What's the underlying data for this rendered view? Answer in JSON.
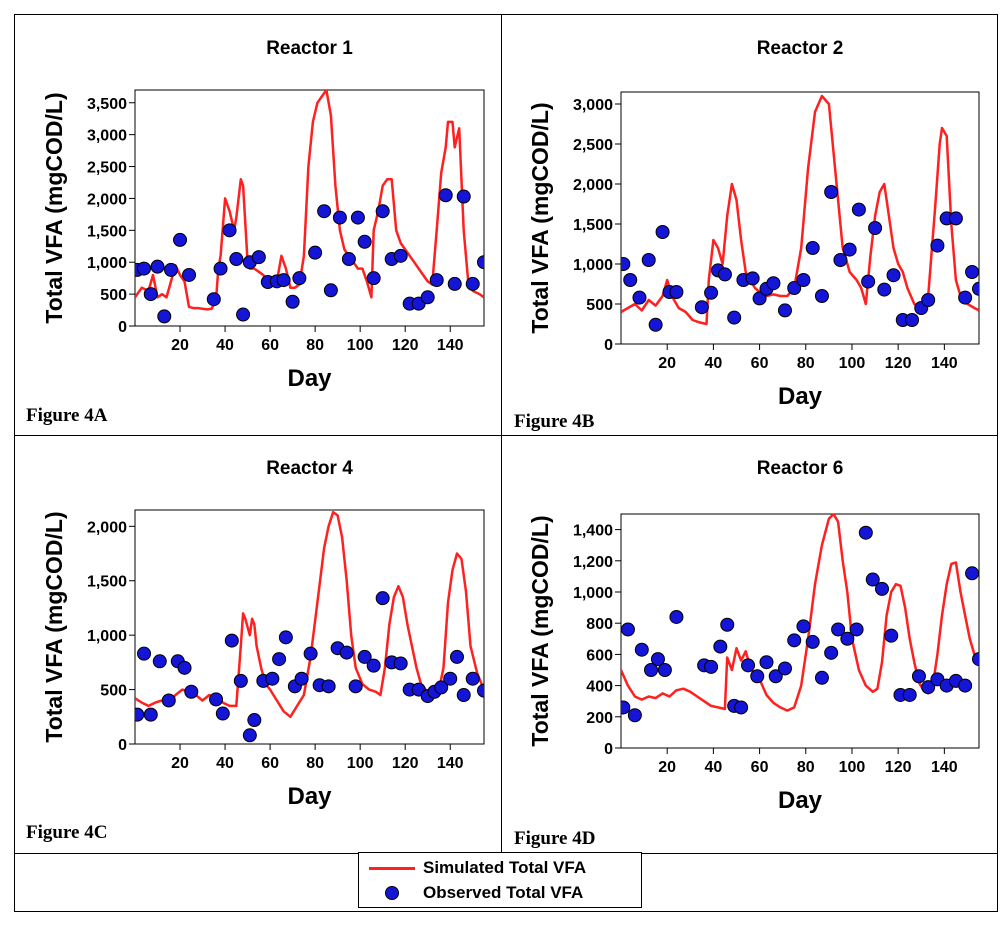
{
  "colors": {
    "simulated": "#ff2020",
    "observed": "#1515d8",
    "marker_edge": "#000000"
  },
  "legend": {
    "simulated_label": "Simulated Total VFA",
    "observed_label": "Observed Total VFA"
  },
  "chart_data": [
    {
      "type": "line+scatter",
      "figure_label": "Figure 4A",
      "title": "Reactor 1",
      "xlabel": "Day",
      "ylabel": "Total VFA (mgCOD/L)",
      "xlim": [
        0,
        155
      ],
      "ylim": [
        0,
        3700
      ],
      "xticks": [
        20,
        40,
        60,
        80,
        100,
        120,
        140
      ],
      "yticks": [
        0,
        500,
        1000,
        1500,
        2000,
        2500,
        3000,
        3500
      ],
      "ytick_labels": [
        "0",
        "500",
        "1,000",
        "1,500",
        "2,000",
        "2,500",
        "3,000",
        "3,500"
      ],
      "series": [
        {
          "name": "Simulated Total VFA",
          "kind": "line",
          "x": [
            0,
            3,
            6,
            8,
            10,
            12,
            14,
            16,
            18,
            20,
            22,
            24,
            26,
            28,
            30,
            32,
            34,
            36,
            37,
            38,
            40,
            42,
            44,
            45,
            47,
            48,
            50,
            51,
            53,
            55,
            57,
            59,
            61,
            63,
            65,
            67,
            69,
            71,
            73,
            75,
            77,
            79,
            81,
            83,
            85,
            87,
            89,
            91,
            93,
            95,
            97,
            99,
            101,
            103,
            105,
            106,
            108,
            110,
            112,
            114,
            116,
            118,
            120,
            122,
            124,
            126,
            128,
            130,
            132,
            134,
            136,
            138,
            139,
            141,
            142,
            144,
            146,
            148,
            150,
            153,
            155
          ],
          "y": [
            450,
            600,
            550,
            800,
            450,
            500,
            450,
            700,
            950,
            800,
            700,
            300,
            280,
            280,
            270,
            260,
            270,
            420,
            900,
            1100,
            2000,
            1800,
            1500,
            1700,
            2300,
            2200,
            1000,
            900,
            900,
            850,
            800,
            700,
            650,
            700,
            1100,
            900,
            600,
            600,
            650,
            1100,
            2500,
            3200,
            3500,
            3600,
            3700,
            3300,
            2200,
            1500,
            1200,
            1100,
            1000,
            900,
            900,
            700,
            450,
            1500,
            1800,
            2200,
            2300,
            2300,
            1500,
            1300,
            1200,
            1100,
            1000,
            900,
            800,
            700,
            650,
            1500,
            2400,
            2800,
            3200,
            3200,
            2800,
            3100,
            1500,
            700,
            550,
            500,
            450
          ]
        },
        {
          "name": "Observed Total VFA",
          "kind": "scatter",
          "x": [
            1,
            4,
            7,
            10,
            13,
            16,
            20,
            24,
            35,
            38,
            42,
            45,
            48,
            51,
            55,
            59,
            63,
            66,
            70,
            73,
            80,
            84,
            87,
            91,
            95,
            99,
            102,
            106,
            110,
            114,
            118,
            122,
            126,
            130,
            134,
            138,
            142,
            146,
            150,
            155
          ],
          "y": [
            880,
            900,
            500,
            930,
            150,
            880,
            1350,
            800,
            420,
            900,
            1500,
            1050,
            180,
            1000,
            1080,
            690,
            700,
            720,
            380,
            750,
            1150,
            1800,
            560,
            1700,
            1050,
            1700,
            1320,
            750,
            1800,
            1050,
            1100,
            350,
            350,
            450,
            720,
            2050,
            660,
            2030,
            660,
            1000
          ]
        }
      ]
    },
    {
      "type": "line+scatter",
      "figure_label": "Figure 4B",
      "title": "Reactor 2",
      "xlabel": "Day",
      "ylabel": "Total VFA (mgCOD/L)",
      "xlim": [
        0,
        155
      ],
      "ylim": [
        0,
        3150
      ],
      "xticks": [
        20,
        40,
        60,
        80,
        100,
        120,
        140
      ],
      "yticks": [
        0,
        500,
        1000,
        1500,
        2000,
        2500,
        3000
      ],
      "ytick_labels": [
        "0",
        "500",
        "1,000",
        "1,500",
        "2,000",
        "2,500",
        "3,000"
      ],
      "series": [
        {
          "name": "Simulated Total VFA",
          "kind": "line",
          "x": [
            0,
            3,
            6,
            9,
            12,
            15,
            18,
            20,
            22,
            25,
            28,
            31,
            34,
            37,
            38,
            40,
            42,
            44,
            46,
            48,
            50,
            52,
            54,
            56,
            58,
            60,
            63,
            66,
            69,
            72,
            75,
            78,
            81,
            84,
            87,
            90,
            93,
            96,
            99,
            102,
            104,
            106,
            108,
            110,
            112,
            114,
            116,
            118,
            120,
            122,
            124,
            127,
            130,
            133,
            136,
            138,
            139,
            141,
            143,
            145,
            147,
            150,
            153,
            155
          ],
          "y": [
            400,
            450,
            500,
            420,
            550,
            480,
            600,
            800,
            600,
            450,
            400,
            300,
            270,
            250,
            800,
            1300,
            1200,
            1000,
            1600,
            2000,
            1800,
            1300,
            900,
            800,
            700,
            650,
            600,
            620,
            600,
            600,
            700,
            1200,
            2200,
            2900,
            3100,
            3000,
            2100,
            1200,
            900,
            800,
            700,
            500,
            1100,
            1600,
            1900,
            2000,
            1600,
            1200,
            1000,
            900,
            700,
            500,
            450,
            600,
            1700,
            2500,
            2700,
            2600,
            1500,
            800,
            600,
            500,
            450,
            420
          ]
        },
        {
          "name": "Observed Total VFA",
          "kind": "scatter",
          "x": [
            1,
            4,
            8,
            12,
            15,
            18,
            21,
            24,
            35,
            39,
            42,
            45,
            49,
            53,
            57,
            60,
            63,
            66,
            71,
            75,
            79,
            83,
            87,
            91,
            95,
            99,
            103,
            107,
            110,
            114,
            118,
            122,
            126,
            130,
            133,
            137,
            141,
            145,
            149,
            152,
            155
          ],
          "y": [
            1000,
            800,
            580,
            1050,
            240,
            1400,
            650,
            650,
            460,
            640,
            920,
            870,
            330,
            800,
            820,
            570,
            690,
            760,
            420,
            700,
            800,
            1200,
            600,
            1900,
            1050,
            1180,
            1680,
            780,
            1450,
            680,
            860,
            300,
            300,
            450,
            550,
            1230,
            1570,
            1570,
            580,
            900,
            690
          ]
        }
      ]
    },
    {
      "type": "line+scatter",
      "figure_label": "Figure 4C",
      "title": "Reactor 4",
      "xlabel": "Day",
      "ylabel": "Total VFA (mgCOD/L)",
      "xlim": [
        0,
        155
      ],
      "ylim": [
        0,
        2150
      ],
      "xticks": [
        20,
        40,
        60,
        80,
        100,
        120,
        140
      ],
      "yticks": [
        0,
        500,
        1000,
        1500,
        2000
      ],
      "ytick_labels": [
        "0",
        "500",
        "1,000",
        "1,500",
        "2,000"
      ],
      "series": [
        {
          "name": "Simulated Total VFA",
          "kind": "line",
          "x": [
            0,
            3,
            6,
            9,
            12,
            15,
            18,
            21,
            24,
            27,
            30,
            33,
            36,
            39,
            42,
            45,
            47,
            48,
            49,
            51,
            52,
            53,
            54,
            56,
            58,
            60,
            63,
            66,
            69,
            72,
            75,
            78,
            81,
            84,
            86,
            88,
            90,
            92,
            94,
            96,
            98,
            101,
            104,
            107,
            109,
            111,
            113,
            115,
            117,
            119,
            121,
            123,
            125,
            127,
            129,
            131,
            133,
            135,
            137,
            139,
            141,
            143,
            145,
            147,
            149,
            152,
            155
          ],
          "y": [
            420,
            380,
            350,
            380,
            400,
            380,
            450,
            500,
            480,
            450,
            400,
            450,
            420,
            380,
            350,
            350,
            900,
            1200,
            1150,
            1000,
            1150,
            1100,
            900,
            700,
            550,
            500,
            400,
            300,
            250,
            350,
            450,
            800,
            1300,
            1800,
            2000,
            2130,
            2100,
            1900,
            1500,
            1000,
            700,
            550,
            500,
            480,
            450,
            700,
            1100,
            1350,
            1450,
            1350,
            1100,
            900,
            700,
            550,
            500,
            450,
            450,
            500,
            700,
            1300,
            1600,
            1750,
            1700,
            1400,
            900,
            650,
            500
          ]
        },
        {
          "name": "Observed Total VFA",
          "kind": "scatter",
          "x": [
            1,
            4,
            7,
            11,
            15,
            19,
            22,
            25,
            36,
            39,
            43,
            47,
            51,
            53,
            57,
            61,
            64,
            67,
            71,
            74,
            78,
            82,
            86,
            90,
            94,
            98,
            102,
            106,
            110,
            114,
            118,
            122,
            126,
            130,
            133,
            136,
            140,
            143,
            146,
            150,
            155
          ],
          "y": [
            270,
            830,
            270,
            760,
            400,
            760,
            700,
            480,
            410,
            280,
            950,
            580,
            80,
            220,
            580,
            600,
            780,
            980,
            530,
            600,
            830,
            540,
            530,
            880,
            840,
            530,
            800,
            720,
            1340,
            750,
            740,
            500,
            500,
            440,
            480,
            520,
            600,
            800,
            450,
            600,
            490
          ]
        }
      ]
    },
    {
      "type": "line+scatter",
      "figure_label": "Figure 4D",
      "title": "Reactor 6",
      "xlabel": "Day",
      "ylabel": "Total VFA (mgCOD/L)",
      "xlim": [
        0,
        155
      ],
      "ylim": [
        0,
        1500
      ],
      "xticks": [
        20,
        40,
        60,
        80,
        100,
        120,
        140
      ],
      "yticks": [
        0,
        200,
        400,
        600,
        800,
        1000,
        1200,
        1400
      ],
      "ytick_labels": [
        "0",
        "200",
        "400",
        "600",
        "800",
        "1,000",
        "1,200",
        "1,400"
      ],
      "series": [
        {
          "name": "Simulated Total VFA",
          "kind": "line",
          "x": [
            0,
            3,
            6,
            9,
            12,
            15,
            18,
            21,
            24,
            27,
            30,
            33,
            36,
            39,
            42,
            45,
            46,
            48,
            50,
            52,
            54,
            56,
            58,
            60,
            63,
            66,
            69,
            72,
            75,
            78,
            81,
            84,
            87,
            90,
            92,
            94,
            96,
            98,
            100,
            103,
            106,
            109,
            111,
            113,
            115,
            117,
            119,
            121,
            123,
            125,
            127,
            129,
            131,
            133,
            135,
            137,
            139,
            141,
            143,
            145,
            147,
            149,
            151,
            153,
            155
          ],
          "y": [
            500,
            400,
            330,
            310,
            330,
            320,
            350,
            330,
            370,
            380,
            360,
            330,
            300,
            270,
            260,
            250,
            580,
            500,
            640,
            560,
            620,
            520,
            460,
            440,
            340,
            290,
            260,
            240,
            260,
            400,
            700,
            1050,
            1300,
            1470,
            1500,
            1450,
            1200,
            1000,
            700,
            500,
            400,
            360,
            380,
            550,
            850,
            1000,
            1050,
            1040,
            900,
            700,
            550,
            420,
            370,
            350,
            400,
            600,
            850,
            1050,
            1180,
            1190,
            1000,
            850,
            700,
            600,
            560
          ]
        },
        {
          "name": "Observed Total VFA",
          "kind": "scatter",
          "x": [
            1,
            3,
            6,
            9,
            13,
            16,
            19,
            24,
            36,
            39,
            43,
            46,
            49,
            52,
            55,
            59,
            63,
            67,
            71,
            75,
            79,
            83,
            87,
            91,
            94,
            98,
            102,
            106,
            109,
            113,
            117,
            121,
            125,
            129,
            133,
            137,
            141,
            145,
            149,
            152,
            155
          ],
          "y": [
            260,
            760,
            210,
            630,
            500,
            570,
            500,
            840,
            530,
            520,
            650,
            790,
            270,
            260,
            530,
            460,
            550,
            460,
            510,
            690,
            780,
            680,
            450,
            610,
            760,
            700,
            760,
            1380,
            1080,
            1020,
            720,
            340,
            340,
            460,
            390,
            440,
            400,
            430,
            400,
            1120,
            570
          ]
        }
      ]
    }
  ]
}
